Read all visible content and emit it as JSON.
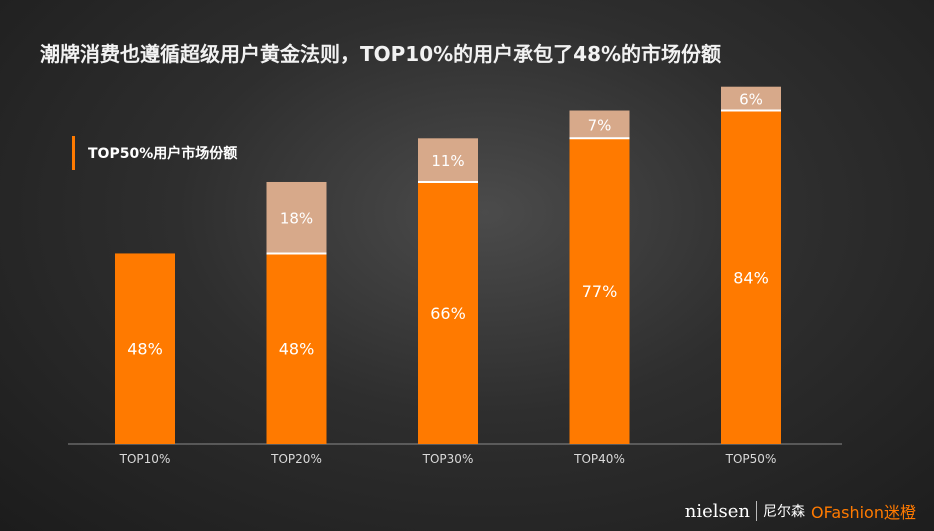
{
  "header": {
    "title": "潮牌消费也遵循超级用户黄金法则，TOP10%的用户承包了48%的市场份额",
    "subtitle": "TOP50%用户市场份额"
  },
  "footer": {
    "brand": "nielsen",
    "brand_cn": "尼尔森",
    "partner": "OFashion迷橙"
  },
  "colors": {
    "base": "#ff7a00",
    "increment": "#d7a98a",
    "accent": "#ff7a00"
  },
  "chart_data": {
    "type": "bar",
    "stacked": true,
    "title": "TOP50%用户市场份额",
    "categories": [
      "TOP10%",
      "TOP20%",
      "TOP30%",
      "TOP40%",
      "TOP50%"
    ],
    "series": [
      {
        "values": [
          48,
          48,
          66,
          77,
          84
        ],
        "labels": [
          "48%",
          "48%",
          "66%",
          "77%",
          "84%"
        ]
      },
      {
        "values": [
          0,
          18,
          11,
          7,
          6
        ],
        "labels": [
          "",
          "18%",
          "11%",
          "7%",
          "6%"
        ]
      }
    ],
    "ylim": [
      0,
      100
    ],
    "grid": false,
    "legend": "none"
  }
}
